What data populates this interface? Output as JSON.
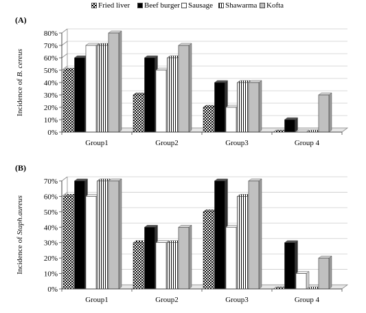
{
  "legend": [
    {
      "name": "Fried liver",
      "pattern": "checker"
    },
    {
      "name": "Beef burger",
      "pattern": "black"
    },
    {
      "name": "Sausage",
      "pattern": "white"
    },
    {
      "name": "Shawarma",
      "pattern": "vstripe"
    },
    {
      "name": "Kofta",
      "pattern": "gray"
    }
  ],
  "colors": {
    "black": "#000000",
    "gray": "#c0c0c0",
    "white": "#ffffff",
    "checker": "#000000"
  },
  "chart_data": [
    {
      "type": "bar",
      "panel_label": "(A)",
      "ylabel_prefix": "Incidence of ",
      "ylabel_italic": "B. cereus",
      "categories": [
        "Group1",
        "Group2",
        "Group3",
        "Group 4"
      ],
      "ylim": [
        0,
        80
      ],
      "y_ticks": [
        "0%",
        "10%",
        "20%",
        "30%",
        "40%",
        "50%",
        "60%",
        "70%",
        "80%"
      ],
      "series": [
        {
          "name": "Fried liver",
          "values": [
            50,
            30,
            20,
            0
          ]
        },
        {
          "name": "Beef burger",
          "values": [
            60,
            60,
            40,
            10
          ]
        },
        {
          "name": "Sausage",
          "values": [
            70,
            50,
            20,
            0
          ]
        },
        {
          "name": "Shawarma",
          "values": [
            70,
            60,
            40,
            0
          ]
        },
        {
          "name": "Kofta",
          "values": [
            80,
            70,
            40,
            30
          ]
        }
      ]
    },
    {
      "type": "bar",
      "panel_label": "(B)",
      "ylabel_prefix": "Incidence of ",
      "ylabel_italic": "Staph.aureus",
      "categories": [
        "Group1",
        "Group2",
        "Group3",
        "Group 4"
      ],
      "ylim": [
        0,
        70
      ],
      "y_ticks": [
        "0%",
        "10%",
        "20%",
        "30%",
        "40%",
        "50%",
        "60%",
        "70%"
      ],
      "series": [
        {
          "name": "Fried liver",
          "values": [
            60,
            30,
            50,
            0
          ]
        },
        {
          "name": "Beef burger",
          "values": [
            70,
            40,
            70,
            30
          ]
        },
        {
          "name": "Sausage",
          "values": [
            60,
            30,
            40,
            10
          ]
        },
        {
          "name": "Shawarma",
          "values": [
            70,
            30,
            60,
            0
          ]
        },
        {
          "name": "Kofta",
          "values": [
            70,
            40,
            70,
            20
          ]
        }
      ]
    }
  ]
}
